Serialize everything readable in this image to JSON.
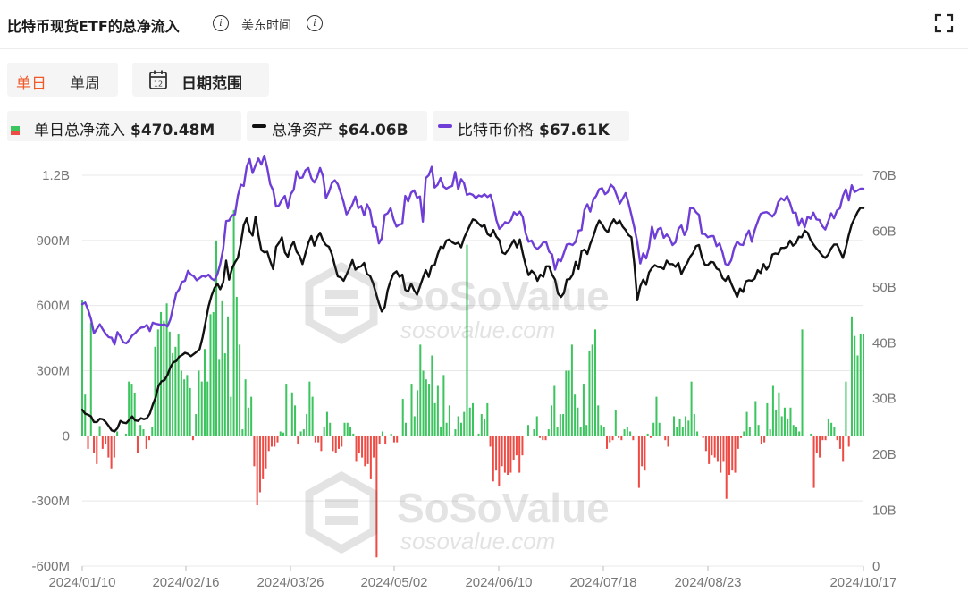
{
  "header": {
    "title": "比特币现货ETF的总净流入",
    "timezone": "美东时间"
  },
  "controls": {
    "daily": "单日",
    "weekly": "单周",
    "date_range": "日期范围",
    "calendar_day": "12"
  },
  "legend": [
    {
      "label": "单日总净流入",
      "value": "$470.48M"
    },
    {
      "label": "总净资产",
      "value": "$64.06B"
    },
    {
      "label": "比特币价格",
      "value": "$67.61K"
    }
  ],
  "watermark": {
    "brand": "SoSoValue",
    "site": "sosovalue.com"
  },
  "colors": {
    "inflow": "#3cc45e",
    "outflow": "#ef4b45",
    "assets": "#111111",
    "price": "#6e3ed6",
    "active_tab": "#f05a28"
  },
  "icons": {
    "info": "info-icon",
    "expand": "expand-icon",
    "calendar": "calendar-icon"
  },
  "chart_data": {
    "type": "bar+line",
    "x_ticks": [
      "2024/01/10",
      "2024/02/16",
      "2024/03/26",
      "2024/05/02",
      "2024/06/10",
      "2024/07/18",
      "2024/08/23",
      "2024/10/17"
    ],
    "y_left_ticks": [
      "1.2B",
      "900M",
      "600M",
      "300M",
      "0",
      "-300M",
      "-600M"
    ],
    "y_right_ticks": [
      "70B",
      "60B",
      "50B",
      "40B",
      "30B",
      "20B",
      "10B",
      "0"
    ],
    "ylim_left": [
      -600,
      1200
    ],
    "ylim_right": [
      0,
      70
    ],
    "grid": true,
    "series": [
      {
        "name": "单日总净流入",
        "type": "bar",
        "unit": "M USD",
        "axis": "left",
        "values": [
          625,
          190,
          -60,
          520,
          -80,
          -130,
          45,
          -60,
          -40,
          -100,
          -150,
          -100,
          20,
          0,
          0,
          10,
          250,
          240,
          195,
          -80,
          50,
          30,
          -60,
          -20,
          40,
          410,
          490,
          570,
          530,
          610,
          480,
          380,
          410,
          470,
          300,
          260,
          280,
          220,
          -20,
          100,
          300,
          250,
          400,
          250,
          560,
          570,
          900,
          350,
          620,
          380,
          550,
          180,
          1040,
          640,
          420,
          30,
          260,
          130,
          180,
          -140,
          -320,
          -260,
          -200,
          -150,
          -70,
          -50,
          -50,
          -30,
          20,
          15,
          240,
          0,
          200,
          140,
          -40,
          20,
          30,
          100,
          250,
          180,
          -30,
          -30,
          -70,
          40,
          110,
          60,
          -70,
          -80,
          -60,
          -50,
          60,
          60,
          40,
          10,
          -120,
          -80,
          -100,
          -140,
          -130,
          -200,
          -100,
          -560,
          -40,
          20,
          -40,
          0,
          10,
          -30,
          -30,
          0,
          170,
          60,
          0,
          240,
          90,
          210,
          420,
          300,
          260,
          240,
          370,
          150,
          230,
          40,
          280,
          60,
          140,
          0,
          30,
          90,
          60,
          110,
          880,
          130,
          150,
          0,
          10,
          100,
          80,
          150,
          -50,
          -210,
          -160,
          -230,
          -140,
          -170,
          -180,
          -170,
          -110,
          -90,
          -170,
          -90,
          0,
          50,
          0,
          30,
          90,
          -10,
          -20,
          -20,
          30,
          140,
          230,
          40,
          100,
          100,
          300,
          300,
          420,
          190,
          130,
          40,
          240,
          50,
          390,
          420,
          490,
          140,
          50,
          40,
          -60,
          -30,
          -20,
          120,
          -10,
          -20,
          30,
          40,
          20,
          -20,
          0,
          -240,
          -140,
          -160,
          10,
          -10,
          60,
          180,
          60,
          0,
          -20,
          -50,
          0,
          90,
          40,
          80,
          40,
          90,
          70,
          250,
          100,
          20,
          0,
          -10,
          -70,
          -130,
          -90,
          -100,
          -120,
          -170,
          -120,
          -290,
          -180,
          -160,
          -170,
          -60,
          -10,
          20,
          110,
          40,
          0,
          160,
          50,
          -40,
          -30,
          150,
          30,
          230,
          120,
          200,
          90,
          130,
          80,
          130,
          50,
          40,
          20,
          490,
          0,
          0,
          10,
          -240,
          -80,
          -100,
          -20,
          -20,
          80,
          60,
          40,
          -20,
          -60,
          -120,
          250,
          -50,
          550,
          460,
          370,
          470,
          470
        ]
      },
      {
        "name": "总净资产",
        "type": "line",
        "unit": "B USD",
        "axis": "right",
        "values": [
          28,
          27.3,
          27.1,
          26.8,
          25.8,
          25.8,
          26.4,
          26.3,
          25.8,
          25.1,
          24.3,
          24.1,
          24.7,
          26.0,
          25.7,
          25.6,
          26.2,
          26.8,
          26.1,
          26.0,
          26.5,
          26.3,
          26.5,
          27.3,
          28.9,
          30.2,
          32.3,
          33.1,
          33.3,
          34.2,
          35.6,
          36.5,
          36.7,
          37.5,
          37.8,
          38.2,
          38.0,
          37.6,
          38.0,
          38.4,
          38.9,
          41.0,
          43.7,
          46.5,
          48.4,
          49.8,
          50.6,
          49.6,
          50.8,
          54.7,
          51.3,
          53.3,
          54.4,
          55.2,
          57.8,
          61.1,
          62.3,
          60.0,
          59.2,
          62.6,
          59.3,
          56.6,
          56.2,
          56.3,
          54.6,
          53.2,
          57.2,
          57.9,
          58.9,
          56.2,
          55.4,
          57.2,
          58.1,
          56.3,
          55.6,
          54.1,
          56.0,
          57.9,
          59.1,
          57.4,
          58.9,
          59.7,
          58.3,
          57.5,
          57.2,
          55.9,
          53.8,
          51.9,
          51.7,
          51.1,
          52.2,
          53.4,
          54.8,
          53.1,
          53.5,
          53.7,
          54.3,
          52.3,
          52.0,
          50.7,
          48.9,
          47.1,
          45.6,
          46.4,
          49.4,
          51.1,
          52.4,
          52.8,
          51.8,
          52.2,
          49.5,
          49.2,
          50.6,
          49.4,
          48.6,
          50.1,
          51.6,
          53.0,
          51.8,
          53.8,
          53.9,
          55.8,
          57.2,
          57.0,
          58.3,
          58.5,
          58.0,
          57.7,
          57.9,
          57.1,
          58.7,
          59.9,
          61.0,
          62.1,
          61.9,
          61.3,
          60.8,
          61.1,
          59.5,
          59.1,
          60.2,
          59.0,
          58.4,
          56.2,
          55.9,
          56.6,
          57.5,
          58.4,
          57.1,
          58.5,
          56.0,
          53.9,
          52.1,
          52.9,
          52.4,
          51.1,
          52.2,
          51.8,
          53.7,
          53.7,
          52.2,
          51.3,
          48.8,
          48.2,
          48.9,
          51.3,
          51.4,
          52.2,
          54.5,
          53.2,
          56.4,
          56.7,
          55.9,
          57.7,
          59.0,
          60.7,
          61.9,
          61.2,
          60.3,
          59.8,
          61.2,
          62.1,
          61.3,
          61.9,
          60.8,
          60.2,
          59.3,
          58.9,
          54.1,
          47.6,
          50.1,
          51.3,
          50.4,
          52.6,
          53.4,
          53.9,
          53.6,
          53.5,
          53.2,
          54.7,
          54.1,
          54.1,
          53.6,
          54.3,
          52.3,
          53.4,
          54.3,
          55.4,
          56.1,
          57.3,
          57.5,
          55.3,
          54.0,
          53.9,
          54.5,
          54.4,
          53.3,
          53.0,
          51.6,
          51.1,
          52.0,
          50.6,
          49.4,
          48.2,
          49.7,
          49.1,
          51.0,
          51.2,
          51.1,
          51.5,
          53.0,
          52.5,
          54.1,
          53.1,
          53.9,
          55.8,
          56.0,
          55.9,
          57.0,
          57.0,
          57.2,
          58.3,
          57.4,
          57.8,
          59.0,
          58.9,
          60.1,
          59.7,
          58.4,
          57.6,
          56.9,
          56.3,
          55.6,
          55.2,
          55.8,
          56.9,
          57.6,
          57.6,
          56.4,
          55.2,
          57.0,
          59.3,
          61.2,
          62.3,
          63.4,
          64.2,
          64.1
        ]
      },
      {
        "name": "比特币价格",
        "type": "line",
        "unit": "K USD",
        "axis": "right",
        "values": [
          46.9,
          47.2,
          45.9,
          44.2,
          41.7,
          42.5,
          43.3,
          42.4,
          41.6,
          41.0,
          40.9,
          39.7,
          41.9,
          41.1,
          40.1,
          39.9,
          40.5,
          41.3,
          41.7,
          42.3,
          42.7,
          42.8,
          43.2,
          42.1,
          43.6,
          43.4,
          43.3,
          43.2,
          43.3,
          42.9,
          44.2,
          46.6,
          48.8,
          49.6,
          50.9,
          51.1,
          52.9,
          52.2,
          51.9,
          51.2,
          51.6,
          52.0,
          51.8,
          52.2,
          51.5,
          51.2,
          52.2,
          54.1,
          56.8,
          61.8,
          61.9,
          62.8,
          63.0,
          66.3,
          68.3,
          68.1,
          71.5,
          72.9,
          70.4,
          71.8,
          73.0,
          71.9,
          73.5,
          71.3,
          68.4,
          67.3,
          64.4,
          64.6,
          65.6,
          66.3,
          64.1,
          66.6,
          67.4,
          70.7,
          69.5,
          69.6,
          70.9,
          71.3,
          69.5,
          68.7,
          69.7,
          71.3,
          69.8,
          65.9,
          67.0,
          68.6,
          69.1,
          68.4,
          66.9,
          65.2,
          63.0,
          63.8,
          64.8,
          66.2,
          64.1,
          64.5,
          62.8,
          64.8,
          63.7,
          60.8,
          60.7,
          57.8,
          58.7,
          62.9,
          63.2,
          64.1,
          62.1,
          60.8,
          61.2,
          61.3,
          66.3,
          65.3,
          66.9,
          67.3,
          66.0,
          66.2,
          61.7,
          69.5,
          70.0,
          71.5,
          67.8,
          68.3,
          69.5,
          68.0,
          67.6,
          67.9,
          68.1,
          70.6,
          67.5,
          69.3,
          68.6,
          66.5,
          66.7,
          66.5,
          65.9,
          66.4,
          66.2,
          66.6,
          66.1,
          66.5,
          64.8,
          62.0,
          60.4,
          60.9,
          61.6,
          61.4,
          62.0,
          63.4,
          62.9,
          63.5,
          62.5,
          59.6,
          58.1,
          58.3,
          57.2,
          56.8,
          57.3,
          58.0,
          58.0,
          56.3,
          55.8,
          53.1,
          54.9,
          54.6,
          56.1,
          57.6,
          57.7,
          57.5,
          58.1,
          60.1,
          60.2,
          63.8,
          64.8,
          63.5,
          65.6,
          66.3,
          67.5,
          67.7,
          66.6,
          67.0,
          68.3,
          67.8,
          66.4,
          64.9,
          65.8,
          66.8,
          65.1,
          62.9,
          60.6,
          58.0,
          54.2,
          56.0,
          55.1,
          57.1,
          60.8,
          58.7,
          60.3,
          60.6,
          58.8,
          59.4,
          58.8,
          57.5,
          58.0,
          60.4,
          61.0,
          59.3,
          60.4,
          64.1,
          64.2,
          63.4,
          62.9,
          59.5,
          59.5,
          58.9,
          59.1,
          59.1,
          57.3,
          57.8,
          56.2,
          54.1,
          53.9,
          54.8,
          57.0,
          58.1,
          57.6,
          57.5,
          59.1,
          60.1,
          58.1,
          60.2,
          61.7,
          63.1,
          63.3,
          63.4,
          63.1,
          62.6,
          63.3,
          65.2,
          65.9,
          65.5,
          66.3,
          65.0,
          63.3,
          63.3,
          61.0,
          62.2,
          60.7,
          62.6,
          62.2,
          63.3,
          62.1,
          62.0,
          60.9,
          60.3,
          61.7,
          63.2,
          62.3,
          63.7,
          64.1,
          66.3,
          67.5,
          65.5,
          68.2,
          67.0,
          67.3,
          67.6,
          67.6
        ]
      }
    ]
  }
}
